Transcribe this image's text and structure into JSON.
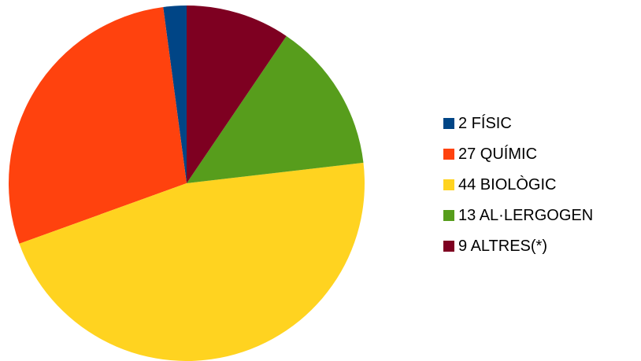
{
  "chart_data": {
    "type": "pie",
    "categories": [
      "FÍSIC",
      "QUÍMIC",
      "BIOLÒGIC",
      "AL·LERGOGEN",
      "ALTRES(*)"
    ],
    "values": [
      2,
      27,
      44,
      13,
      9
    ],
    "colors": [
      "#004586",
      "#ff420e",
      "#ffd320",
      "#579d1c",
      "#7e0021"
    ],
    "legend": {
      "placement": "right",
      "entries": [
        "2 FÍSIC",
        "27 QUÍMIC",
        "44 BIOLÒGIC",
        "13 AL·LERGOGEN",
        "9 ALTRES(*)"
      ]
    },
    "start_angle_deg": 0,
    "direction": "clockwise"
  }
}
